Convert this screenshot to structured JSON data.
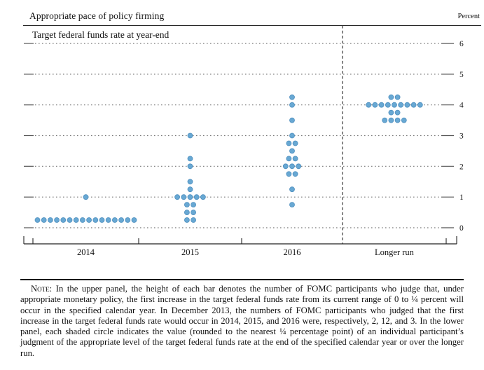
{
  "header": {
    "title": "Appropriate pace of policy firming",
    "unit_label": "Percent",
    "subtitle": "Target federal funds rate at year-end"
  },
  "chart_data": {
    "type": "scatter",
    "subtype": "fomc-dot-plot",
    "title": "Appropriate pace of policy firming",
    "subtitle": "Target federal funds rate at year-end",
    "ylabel": "Percent",
    "ylim": [
      0,
      6
    ],
    "yticks": [
      0,
      1,
      2,
      3,
      4,
      5,
      6
    ],
    "grid": "dotted-horizontal",
    "legend": "none",
    "separator": {
      "style": "dashed-vertical",
      "between": [
        "2016",
        "Longer run"
      ]
    },
    "dot_color": "#68a8d3",
    "dot_edge_color": "#4e8fbf",
    "categories": [
      "2014",
      "2015",
      "2016",
      "Longer run"
    ],
    "columns": [
      {
        "label": "2014",
        "dots": [
          {
            "rate": 1.0,
            "count": 1
          },
          {
            "rate": 0.25,
            "count": 16
          }
        ]
      },
      {
        "label": "2015",
        "dots": [
          {
            "rate": 3.0,
            "count": 1
          },
          {
            "rate": 2.25,
            "count": 1
          },
          {
            "rate": 2.0,
            "count": 1
          },
          {
            "rate": 1.5,
            "count": 1
          },
          {
            "rate": 1.25,
            "count": 1
          },
          {
            "rate": 1.0,
            "count": 5
          },
          {
            "rate": 0.75,
            "count": 2
          },
          {
            "rate": 0.5,
            "count": 2
          },
          {
            "rate": 0.25,
            "count": 2
          }
        ]
      },
      {
        "label": "2016",
        "dots": [
          {
            "rate": 4.25,
            "count": 1
          },
          {
            "rate": 4.0,
            "count": 1
          },
          {
            "rate": 3.5,
            "count": 1
          },
          {
            "rate": 3.0,
            "count": 1
          },
          {
            "rate": 2.75,
            "count": 2
          },
          {
            "rate": 2.5,
            "count": 1
          },
          {
            "rate": 2.25,
            "count": 2
          },
          {
            "rate": 2.0,
            "count": 3
          },
          {
            "rate": 1.75,
            "count": 2
          },
          {
            "rate": 1.25,
            "count": 1
          },
          {
            "rate": 0.75,
            "count": 1
          }
        ]
      },
      {
        "label": "Longer run",
        "dots": [
          {
            "rate": 4.25,
            "count": 2
          },
          {
            "rate": 4.0,
            "count": 9
          },
          {
            "rate": 3.75,
            "count": 2
          },
          {
            "rate": 3.5,
            "count": 4
          }
        ]
      }
    ]
  },
  "note": {
    "label": "Note:",
    "text": "In the upper panel, the height of each bar denotes the number of FOMC participants who judge that, under appropriate monetary policy, the first increase in the target federal funds rate from its current range of 0 to ¼ percent will occur in the specified calendar year. In December 2013, the numbers of FOMC participants who judged that the first increase in the target federal funds rate would occur in 2014, 2015, and 2016 were, respectively, 2, 12, and 3. In the lower panel, each shaded circle indicates the value (rounded to the nearest ¼ percentage point) of an individual participant’s judgment of the appropriate level of the target federal funds rate at the end of the specified calendar year or over the longer run."
  }
}
